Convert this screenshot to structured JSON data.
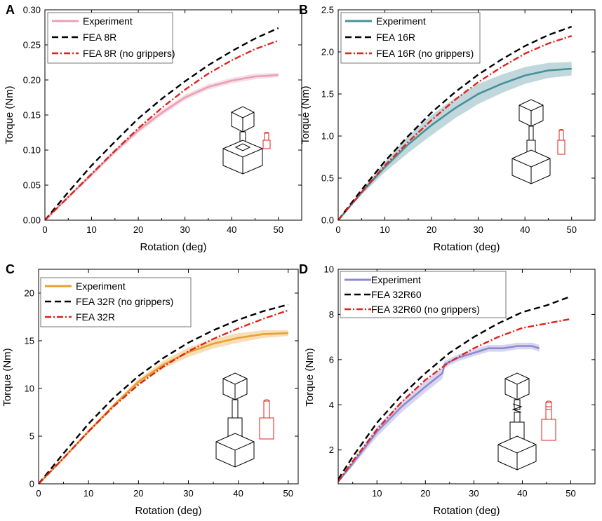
{
  "chart_data": [
    {
      "panel": "A",
      "type": "line",
      "xlabel": "Rotation (deg)",
      "ylabel": "Torque (Nm)",
      "xlim": [
        0,
        55
      ],
      "ylim": [
        0,
        0.3
      ],
      "xticks": [
        0,
        10,
        20,
        30,
        40,
        50
      ],
      "yticks": [
        0.0,
        0.05,
        0.1,
        0.15,
        0.2,
        0.25,
        0.3
      ],
      "ytick_labels": [
        "0.00",
        "0.05",
        "0.10",
        "0.15",
        "0.20",
        "0.25",
        "0.30"
      ],
      "series": [
        {
          "name": "Experiment",
          "style": "solid",
          "color": "#e8a0b4",
          "band": true,
          "x": [
            0,
            5,
            10,
            15,
            20,
            25,
            30,
            35,
            40,
            45,
            50
          ],
          "y": [
            0,
            0.033,
            0.065,
            0.098,
            0.128,
            0.153,
            0.175,
            0.19,
            0.199,
            0.205,
            0.207
          ],
          "err": [
            0,
            0.002,
            0.003,
            0.003,
            0.004,
            0.004,
            0.004,
            0.004,
            0.004,
            0.004,
            0.003
          ]
        },
        {
          "name": "FEA 8R",
          "style": "dash",
          "color": "#000000",
          "x": [
            0,
            5,
            10,
            15,
            20,
            25,
            30,
            35,
            40,
            45,
            50
          ],
          "y": [
            0,
            0.04,
            0.078,
            0.112,
            0.145,
            0.173,
            0.198,
            0.221,
            0.241,
            0.259,
            0.274
          ]
        },
        {
          "name": "FEA 8R (no grippers)",
          "style": "dashdot",
          "color": "#e0201b",
          "x": [
            0,
            5,
            10,
            15,
            20,
            25,
            30,
            35,
            40,
            45,
            50
          ],
          "y": [
            0,
            0.033,
            0.066,
            0.099,
            0.131,
            0.16,
            0.186,
            0.209,
            0.228,
            0.244,
            0.256
          ]
        }
      ]
    },
    {
      "panel": "B",
      "type": "line",
      "xlabel": "Rotation (deg)",
      "ylabel": "Torque (Nm)",
      "xlim": [
        0,
        55
      ],
      "ylim": [
        0,
        2.5
      ],
      "xticks": [
        0,
        10,
        20,
        30,
        40,
        50
      ],
      "yticks": [
        0.0,
        0.5,
        1.0,
        1.5,
        2.0,
        2.5
      ],
      "ytick_labels": [
        "0.0",
        "0.5",
        "1.0",
        "1.5",
        "2.0",
        "2.5"
      ],
      "series": [
        {
          "name": "Experiment",
          "style": "solid",
          "color": "#4a8f9a",
          "band": true,
          "x": [
            0,
            5,
            10,
            15,
            20,
            25,
            30,
            35,
            40,
            45,
            50
          ],
          "y": [
            0,
            0.33,
            0.63,
            0.9,
            1.13,
            1.33,
            1.5,
            1.62,
            1.72,
            1.78,
            1.8
          ],
          "err": [
            0,
            0.03,
            0.06,
            0.1,
            0.12,
            0.12,
            0.12,
            0.11,
            0.1,
            0.09,
            0.08
          ]
        },
        {
          "name": "FEA 16R",
          "style": "dash",
          "color": "#000000",
          "x": [
            0,
            5,
            10,
            15,
            20,
            25,
            30,
            35,
            40,
            45,
            50
          ],
          "y": [
            0,
            0.36,
            0.7,
            1.0,
            1.28,
            1.52,
            1.73,
            1.91,
            2.07,
            2.2,
            2.3
          ]
        },
        {
          "name": "FEA 16R (no grippers)",
          "style": "dashdot",
          "color": "#e0201b",
          "x": [
            0,
            5,
            10,
            15,
            20,
            25,
            30,
            35,
            40,
            45,
            50
          ],
          "y": [
            0,
            0.33,
            0.65,
            0.93,
            1.19,
            1.43,
            1.64,
            1.82,
            1.98,
            2.1,
            2.19
          ]
        }
      ]
    },
    {
      "panel": "C",
      "type": "line",
      "xlabel": "Rotation (deg)",
      "ylabel": "Torque (Nm)",
      "xlim": [
        0,
        52
      ],
      "ylim": [
        0,
        22.5
      ],
      "xticks": [
        0,
        10,
        20,
        30,
        40,
        50
      ],
      "yticks": [
        0,
        5,
        10,
        15,
        20
      ],
      "ytick_labels": [
        "0",
        "5",
        "10",
        "15",
        "20"
      ],
      "series": [
        {
          "name": "Experiment",
          "style": "solid",
          "color": "#e8a030",
          "band": true,
          "x": [
            0,
            5,
            10,
            15,
            20,
            25,
            30,
            35,
            40,
            45,
            50
          ],
          "y": [
            0,
            2.7,
            5.5,
            8.2,
            10.7,
            12.5,
            13.8,
            14.7,
            15.3,
            15.7,
            15.8
          ],
          "err": [
            0,
            0.1,
            0.2,
            0.2,
            0.3,
            0.4,
            0.5,
            0.5,
            0.5,
            0.4,
            0.3
          ]
        },
        {
          "name": "FEA 32R (no grippers)",
          "style": "dash",
          "color": "#000000",
          "x": [
            0,
            5,
            10,
            15,
            20,
            25,
            30,
            35,
            40,
            45,
            50
          ],
          "y": [
            0,
            3.2,
            6.3,
            9.0,
            11.3,
            13.2,
            14.8,
            16.1,
            17.2,
            18.1,
            18.8
          ]
        },
        {
          "name": "FEA 32R",
          "style": "dashdot",
          "color": "#e0201b",
          "x": [
            0,
            5,
            10,
            15,
            20,
            25,
            30,
            35,
            40,
            45,
            50
          ],
          "y": [
            0,
            2.7,
            5.5,
            8.1,
            10.4,
            12.3,
            13.9,
            15.2,
            16.3,
            17.3,
            18.2
          ]
        }
      ]
    },
    {
      "panel": "D",
      "type": "line",
      "xlabel": "Rotation (deg)",
      "ylabel": "Torque (Nm)",
      "xlim": [
        2,
        55
      ],
      "ylim": [
        0.5,
        10
      ],
      "xticks": [
        10,
        20,
        30,
        40,
        50
      ],
      "yticks": [
        2,
        4,
        6,
        8,
        10
      ],
      "ytick_labels": [
        "2",
        "4",
        "6",
        "8",
        "10"
      ],
      "series": [
        {
          "name": "Experiment",
          "style": "solid",
          "color": "#8e8ad0",
          "band": true,
          "x": [
            2,
            5,
            10,
            15,
            20,
            23.5,
            24,
            27,
            30,
            33,
            36,
            39,
            42,
            43.5
          ],
          "y": [
            0.6,
            1.4,
            2.8,
            3.9,
            4.8,
            5.4,
            5.8,
            6.1,
            6.3,
            6.5,
            6.5,
            6.6,
            6.6,
            6.5
          ],
          "err": [
            0.05,
            0.12,
            0.22,
            0.25,
            0.25,
            0.25,
            0.15,
            0.15,
            0.15,
            0.15,
            0.15,
            0.15,
            0.15,
            0.15
          ]
        },
        {
          "name": "FEA 32R60",
          "style": "dash",
          "color": "#000000",
          "x": [
            2,
            5,
            10,
            15,
            20,
            25,
            30,
            35,
            40,
            45,
            50
          ],
          "y": [
            0.7,
            1.7,
            3.2,
            4.4,
            5.4,
            6.3,
            7.0,
            7.6,
            8.1,
            8.4,
            8.8
          ]
        },
        {
          "name": "FEA 32R60 (no grippers)",
          "style": "dashdot",
          "color": "#e0201b",
          "x": [
            2,
            5,
            10,
            15,
            20,
            25,
            30,
            35,
            40,
            45,
            50
          ],
          "y": [
            0.6,
            1.5,
            2.9,
            4.1,
            5.1,
            5.9,
            6.5,
            7.0,
            7.4,
            7.6,
            7.8
          ]
        }
      ]
    }
  ]
}
